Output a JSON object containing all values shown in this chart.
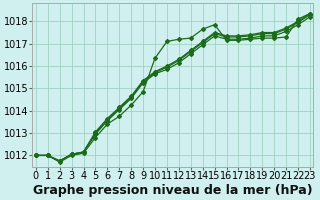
{
  "xlabel": "Graphe pression niveau de la mer (hPa)",
  "background_color": "#cff0ee",
  "grid_color": "#99ccbb",
  "line_color": "#1a6b1a",
  "x_ticks": [
    0,
    1,
    2,
    3,
    4,
    5,
    6,
    7,
    8,
    9,
    10,
    11,
    12,
    13,
    14,
    15,
    16,
    17,
    18,
    19,
    20,
    21,
    22,
    23
  ],
  "ylim": [
    1011.5,
    1018.8
  ],
  "xlim": [
    -0.3,
    23.3
  ],
  "line1": [
    1012.0,
    1012.0,
    1011.7,
    1012.0,
    1012.1,
    1012.8,
    1013.4,
    1013.75,
    1014.25,
    1014.85,
    1016.35,
    1017.1,
    1017.2,
    1017.25,
    1017.65,
    1017.85,
    1017.15,
    1017.15,
    1017.2,
    1017.25,
    1017.25,
    1017.3,
    1018.1,
    1018.35
  ],
  "line2": [
    1012.0,
    1012.0,
    1011.75,
    1012.05,
    1012.15,
    1012.95,
    1013.55,
    1014.05,
    1014.55,
    1015.25,
    1015.65,
    1015.85,
    1016.15,
    1016.55,
    1016.95,
    1017.35,
    1017.2,
    1017.2,
    1017.25,
    1017.35,
    1017.35,
    1017.55,
    1017.85,
    1018.2
  ],
  "line3": [
    1012.0,
    1012.0,
    1011.75,
    1012.05,
    1012.15,
    1013.0,
    1013.6,
    1014.1,
    1014.6,
    1015.3,
    1015.7,
    1015.95,
    1016.25,
    1016.65,
    1017.05,
    1017.45,
    1017.3,
    1017.3,
    1017.35,
    1017.45,
    1017.45,
    1017.65,
    1017.95,
    1018.3
  ],
  "line4": [
    1012.0,
    1012.0,
    1011.75,
    1012.05,
    1012.15,
    1013.05,
    1013.65,
    1014.15,
    1014.65,
    1015.35,
    1015.75,
    1016.0,
    1016.3,
    1016.7,
    1017.1,
    1017.5,
    1017.35,
    1017.35,
    1017.4,
    1017.5,
    1017.5,
    1017.7,
    1018.0,
    1018.35
  ],
  "yticks": [
    1012,
    1013,
    1014,
    1015,
    1016,
    1017,
    1018
  ],
  "xlabel_fontsize": 9,
  "xlabel_fontweight": "bold",
  "tick_fontsize": 7
}
